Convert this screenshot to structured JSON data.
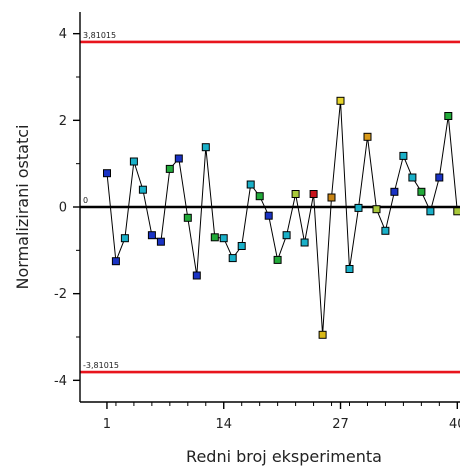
{
  "chart_data": {
    "type": "scatter",
    "xlabel": "Redni broj eksperimenta",
    "ylabel": "Normalizirani ostatci",
    "xlim": [
      -2,
      40.3
    ],
    "ylim": [
      -4.5,
      4.5
    ],
    "x_ticks": [
      1,
      14,
      27,
      40
    ],
    "y_ticks": [
      4,
      2,
      0,
      -2,
      -4
    ],
    "y_tick_labels": [
      "4",
      "2",
      "0",
      "-2",
      "-4"
    ],
    "reference_lines": [
      {
        "value": 3.81015,
        "label": "3,81015",
        "color": "#e8141c"
      },
      {
        "value": 0,
        "label": "0",
        "color": "#000000"
      },
      {
        "value": -3.81015,
        "label": "-3,81015",
        "color": "#e8141c"
      }
    ],
    "series": [
      {
        "line_color": "#000000",
        "x": [
          1,
          2,
          3,
          4,
          5,
          6,
          7,
          8,
          9,
          10,
          11,
          12,
          13,
          14,
          15,
          16,
          17,
          18,
          19,
          20,
          21,
          22,
          23,
          24,
          25,
          26,
          27,
          28,
          29,
          30,
          31,
          32,
          33,
          34,
          35,
          36,
          37,
          38,
          39,
          40
        ],
        "y": [
          0.78,
          -1.25,
          -0.72,
          1.05,
          0.4,
          -0.65,
          -0.8,
          0.88,
          1.12,
          -0.25,
          -1.58,
          1.38,
          -0.7,
          -0.72,
          -1.18,
          -0.9,
          0.52,
          0.25,
          -0.2,
          -1.22,
          -0.65,
          0.3,
          -0.82,
          0.3,
          -2.95,
          0.22,
          2.45,
          -1.43,
          -0.02,
          1.62,
          -0.05,
          -0.55,
          0.35,
          1.18,
          0.68,
          0.35,
          -0.1,
          0.68,
          2.1,
          -0.1
        ],
        "colors": [
          "#1a33c4",
          "#1a33c4",
          "#1ab0c8",
          "#1ab0c8",
          "#1ab0c8",
          "#1a33c4",
          "#1a33c4",
          "#22aa3a",
          "#1a33c4",
          "#22aa3a",
          "#1a33c4",
          "#1ab0c8",
          "#22aa3a",
          "#1ab0c8",
          "#1ab0c8",
          "#1ab0c8",
          "#1ab0c8",
          "#22aa3a",
          "#1a33c4",
          "#22aa3a",
          "#1ab0c8",
          "#a8c83a",
          "#1ab0c8",
          "#c8141c",
          "#d9b816",
          "#c88414",
          "#e6d42a",
          "#1ab0c8",
          "#1ab0c8",
          "#d99a1a",
          "#a8c83a",
          "#1ab0c8",
          "#1a33c4",
          "#1ab0c8",
          "#1ab0c8",
          "#22aa3a",
          "#1ab0c8",
          "#1a33c4",
          "#22aa3a",
          "#a8c83a"
        ]
      }
    ]
  }
}
